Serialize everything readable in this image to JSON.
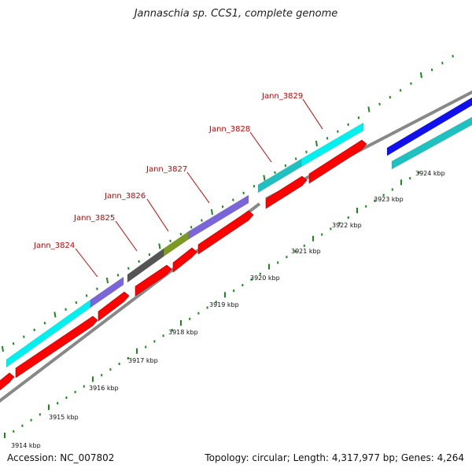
{
  "title": "Jannaschia sp. CCS1, complete genome",
  "footer": {
    "accession": "Accession: NC_007802",
    "summary": "Topology: circular; Length: 4,317,977 bp; Genes: 4,264"
  },
  "gene_labels": [
    {
      "id": "gene-3824",
      "text": "Jann_3824"
    },
    {
      "id": "gene-3825",
      "text": "Jann_3825"
    },
    {
      "id": "gene-3826",
      "text": "Jann_3826"
    },
    {
      "id": "gene-3827",
      "text": "Jann_3827"
    },
    {
      "id": "gene-3828",
      "text": "Jann_3828"
    },
    {
      "id": "gene-3829",
      "text": "Jann_3829"
    }
  ],
  "kbp_labels": [
    "3914 kbp",
    "3915 kbp",
    "3916 kbp",
    "3917 kbp",
    "3918 kbp",
    "3919 kbp",
    "3920 kbp",
    "3921 kbp",
    "3922 kbp",
    "3923 kbp",
    "3924 kbp"
  ],
  "colors": {
    "cyan": "#00f0f0",
    "teal": "#1fc0c0",
    "purple": "#7a66d8",
    "olive": "#7c9a23",
    "gray": "#555555",
    "blue": "#1010ee",
    "red": "#ff0000",
    "backbone": "#888888",
    "tick": "#1a8a1a",
    "label_red": "#cc0000"
  }
}
